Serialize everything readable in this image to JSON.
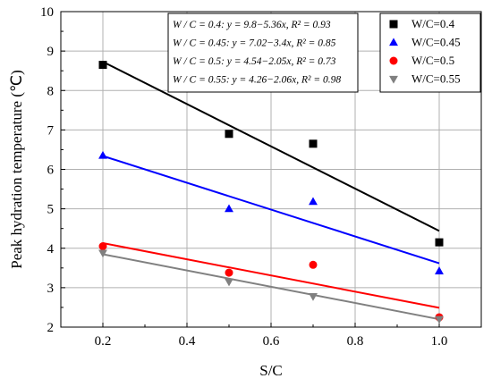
{
  "chart_data": {
    "type": "scatter",
    "title": "",
    "xlabel": "S/C",
    "ylabel": "Peak hydration temperature (℃)",
    "xlim": [
      0.1,
      1.1
    ],
    "ylim": [
      2,
      10
    ],
    "x_ticks": [
      "0.2",
      "0.4",
      "0.6",
      "0.8",
      "1.0"
    ],
    "y_ticks": [
      "2",
      "3",
      "4",
      "5",
      "6",
      "7",
      "8",
      "9",
      "10"
    ],
    "grid": true,
    "legend_position": "top-right",
    "series": [
      {
        "name": "W/C=0.4",
        "color": "#000000",
        "marker": "square",
        "x": [
          0.2,
          0.5,
          0.7,
          1.0
        ],
        "y": [
          8.65,
          6.9,
          6.65,
          4.15
        ],
        "fit": {
          "intercept": 9.8,
          "slope": -5.36
        },
        "equation": "W / C = 0.4: y = 9.8−5.36x, R² = 0.93"
      },
      {
        "name": "W/C=0.45",
        "color": "#0000ff",
        "marker": "triangle-up",
        "x": [
          0.2,
          0.5,
          0.7,
          1.0
        ],
        "y": [
          6.35,
          5.0,
          5.18,
          3.42
        ],
        "fit": {
          "intercept": 7.02,
          "slope": -3.4
        },
        "equation": "W / C = 0.45: y = 7.02−3.4x, R² = 0.85"
      },
      {
        "name": "W/C=0.5",
        "color": "#ff0000",
        "marker": "circle",
        "x": [
          0.2,
          0.5,
          0.7,
          1.0
        ],
        "y": [
          4.05,
          3.38,
          3.58,
          2.25
        ],
        "fit": {
          "intercept": 4.54,
          "slope": -2.05
        },
        "equation": "W / C = 0.5: y = 4.54−2.05x, R² = 0.73"
      },
      {
        "name": "W/C=0.55",
        "color": "#808080",
        "marker": "triangle-down",
        "x": [
          0.2,
          0.5,
          0.7,
          1.0
        ],
        "y": [
          3.88,
          3.15,
          2.78,
          2.2
        ],
        "fit": {
          "intercept": 4.26,
          "slope": -2.06
        },
        "equation": "W / C = 0.55: y = 4.26−2.06x, R² = 0.98"
      }
    ]
  }
}
